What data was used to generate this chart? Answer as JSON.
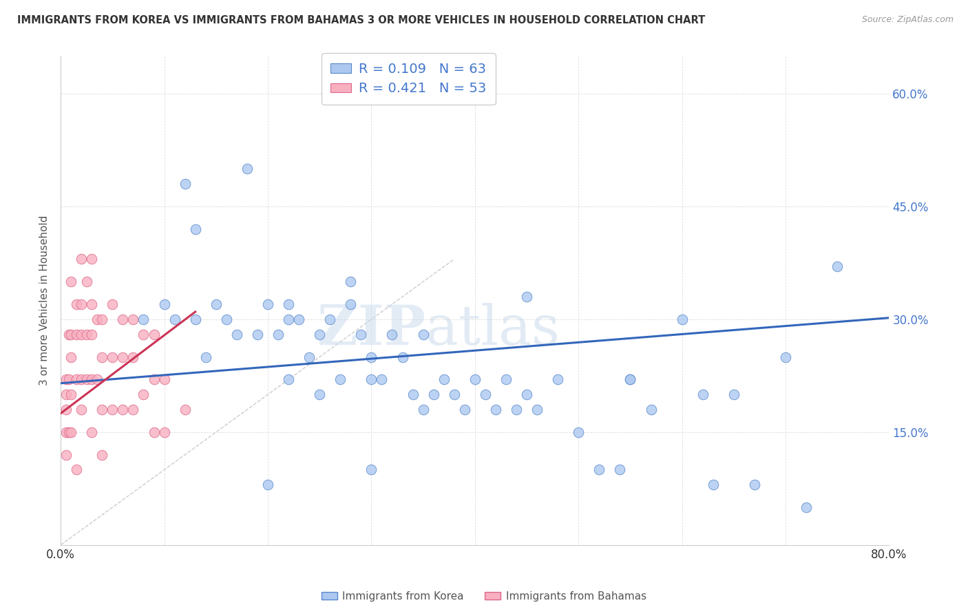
{
  "title": "IMMIGRANTS FROM KOREA VS IMMIGRANTS FROM BAHAMAS 3 OR MORE VEHICLES IN HOUSEHOLD CORRELATION CHART",
  "source": "Source: ZipAtlas.com",
  "ylabel": "3 or more Vehicles in Household",
  "xlim": [
    0.0,
    0.8
  ],
  "ylim": [
    0.0,
    0.65
  ],
  "xticks": [
    0.0,
    0.1,
    0.2,
    0.3,
    0.4,
    0.5,
    0.6,
    0.7,
    0.8
  ],
  "yticks": [
    0.0,
    0.15,
    0.3,
    0.45,
    0.6
  ],
  "korea_color": "#adc8f0",
  "korea_edge": "#5588cc",
  "bahamas_color": "#f8b0c0",
  "bahamas_edge": "#dd6688",
  "trend_korea_color": "#3366bb",
  "trend_bahamas_color": "#cc3355",
  "trend_ref_color": "#cccccc",
  "legend_korea_R": "0.109",
  "legend_korea_N": "63",
  "legend_bahamas_R": "0.421",
  "legend_bahamas_N": "53",
  "watermark_zip": "ZIP",
  "watermark_atlas": "atlas",
  "korea_x": [
    0.08,
    0.1,
    0.11,
    0.12,
    0.13,
    0.13,
    0.14,
    0.15,
    0.16,
    0.17,
    0.18,
    0.19,
    0.2,
    0.21,
    0.22,
    0.22,
    0.23,
    0.24,
    0.25,
    0.26,
    0.27,
    0.28,
    0.29,
    0.3,
    0.31,
    0.32,
    0.33,
    0.34,
    0.35,
    0.36,
    0.37,
    0.38,
    0.39,
    0.4,
    0.41,
    0.42,
    0.43,
    0.44,
    0.45,
    0.46,
    0.48,
    0.5,
    0.52,
    0.54,
    0.55,
    0.57,
    0.6,
    0.62,
    0.63,
    0.65,
    0.67,
    0.7,
    0.72,
    0.75,
    0.2,
    0.22,
    0.3,
    0.45,
    0.55,
    0.3,
    0.35,
    0.25,
    0.28
  ],
  "korea_y": [
    0.3,
    0.32,
    0.3,
    0.48,
    0.42,
    0.3,
    0.25,
    0.32,
    0.3,
    0.28,
    0.5,
    0.28,
    0.32,
    0.28,
    0.32,
    0.3,
    0.3,
    0.25,
    0.28,
    0.3,
    0.22,
    0.32,
    0.28,
    0.25,
    0.22,
    0.28,
    0.25,
    0.2,
    0.28,
    0.2,
    0.22,
    0.2,
    0.18,
    0.22,
    0.2,
    0.18,
    0.22,
    0.18,
    0.2,
    0.18,
    0.22,
    0.15,
    0.1,
    0.1,
    0.22,
    0.18,
    0.3,
    0.2,
    0.08,
    0.2,
    0.08,
    0.25,
    0.05,
    0.37,
    0.08,
    0.22,
    0.22,
    0.33,
    0.22,
    0.1,
    0.18,
    0.2,
    0.35
  ],
  "bahamas_x": [
    0.005,
    0.005,
    0.005,
    0.005,
    0.005,
    0.008,
    0.008,
    0.008,
    0.01,
    0.01,
    0.01,
    0.01,
    0.01,
    0.015,
    0.015,
    0.015,
    0.015,
    0.02,
    0.02,
    0.02,
    0.02,
    0.02,
    0.025,
    0.025,
    0.025,
    0.03,
    0.03,
    0.03,
    0.03,
    0.03,
    0.035,
    0.035,
    0.04,
    0.04,
    0.04,
    0.04,
    0.05,
    0.05,
    0.05,
    0.06,
    0.06,
    0.06,
    0.07,
    0.07,
    0.07,
    0.08,
    0.08,
    0.09,
    0.09,
    0.09,
    0.1,
    0.1,
    0.12
  ],
  "bahamas_y": [
    0.22,
    0.2,
    0.18,
    0.15,
    0.12,
    0.28,
    0.22,
    0.15,
    0.35,
    0.28,
    0.25,
    0.2,
    0.15,
    0.32,
    0.28,
    0.22,
    0.1,
    0.38,
    0.32,
    0.28,
    0.22,
    0.18,
    0.35,
    0.28,
    0.22,
    0.38,
    0.32,
    0.28,
    0.22,
    0.15,
    0.3,
    0.22,
    0.3,
    0.25,
    0.18,
    0.12,
    0.32,
    0.25,
    0.18,
    0.3,
    0.25,
    0.18,
    0.3,
    0.25,
    0.18,
    0.28,
    0.2,
    0.28,
    0.22,
    0.15,
    0.22,
    0.15,
    0.18
  ],
  "korea_trend_x0": 0.0,
  "korea_trend_y0": 0.215,
  "korea_trend_x1": 0.8,
  "korea_trend_y1": 0.302,
  "bahamas_trend_x0": 0.0,
  "bahamas_trend_y0": 0.175,
  "bahamas_trend_x1": 0.13,
  "bahamas_trend_y1": 0.31,
  "ref_line_x0": 0.0,
  "ref_line_y0": 0.0,
  "ref_line_x1": 0.38,
  "ref_line_y1": 0.38
}
